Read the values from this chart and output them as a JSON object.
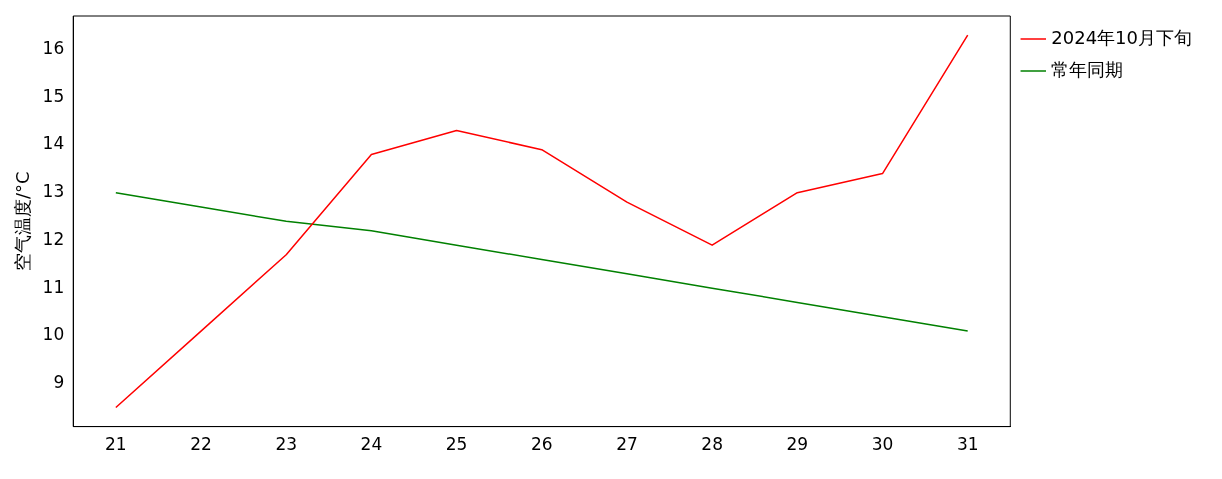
{
  "chart_data": {
    "type": "line",
    "ylabel": "空气温度/°C",
    "x": [
      21,
      22,
      23,
      24,
      25,
      26,
      27,
      28,
      29,
      30,
      31
    ],
    "series": [
      {
        "name": "2024年10月下旬",
        "color": "#ff0000",
        "values": [
          8.5,
          10.1,
          11.7,
          13.8,
          14.3,
          13.9,
          12.8,
          11.9,
          13.0,
          13.4,
          16.3
        ]
      },
      {
        "name": "常年同期",
        "color": "#008000",
        "values": [
          13.0,
          12.7,
          12.4,
          12.2,
          11.9,
          11.6,
          11.3,
          11.0,
          10.7,
          10.4,
          10.1
        ]
      }
    ],
    "xlim": [
      20.5,
      31.5
    ],
    "xticks": [
      21,
      22,
      23,
      24,
      25,
      26,
      27,
      28,
      29,
      30,
      31
    ],
    "ylim": [
      8.1,
      16.7
    ],
    "yticks": [
      9,
      10,
      11,
      12,
      13,
      14,
      15,
      16
    ],
    "grid": false,
    "legend": "top right",
    "marker": "none",
    "line_style": "solid"
  }
}
